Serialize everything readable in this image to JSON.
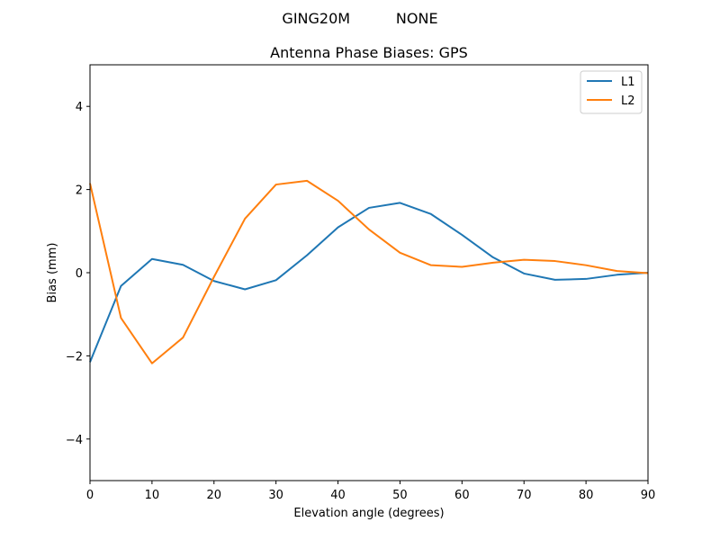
{
  "figure": {
    "suptitle": "GING20M          NONE"
  },
  "chart_data": {
    "type": "line",
    "title": "Antenna Phase Biases: GPS",
    "xlabel": "Elevation angle (degrees)",
    "ylabel": "Bias (mm)",
    "xlim": [
      0,
      90
    ],
    "ylim": [
      -5,
      5
    ],
    "xticks": [
      0,
      10,
      20,
      30,
      40,
      50,
      60,
      70,
      80,
      90
    ],
    "yticks": [
      -4,
      -2,
      0,
      2,
      4
    ],
    "grid": false,
    "legend_position": "top-right",
    "x": [
      0,
      5,
      10,
      15,
      20,
      25,
      30,
      35,
      40,
      45,
      50,
      55,
      60,
      65,
      70,
      75,
      80,
      85,
      90
    ],
    "series": [
      {
        "name": "L1",
        "color": "#1f77b4",
        "values": [
          -2.15,
          -0.32,
          0.33,
          0.19,
          -0.2,
          -0.4,
          -0.18,
          0.42,
          1.09,
          1.56,
          1.68,
          1.41,
          0.91,
          0.37,
          -0.02,
          -0.17,
          -0.15,
          -0.05,
          0.0
        ]
      },
      {
        "name": "L2",
        "color": "#ff7f0e",
        "values": [
          2.15,
          -1.09,
          -2.18,
          -1.56,
          -0.1,
          1.3,
          2.12,
          2.21,
          1.73,
          1.04,
          0.48,
          0.18,
          0.14,
          0.24,
          0.31,
          0.28,
          0.18,
          0.04,
          -0.01
        ]
      }
    ]
  }
}
